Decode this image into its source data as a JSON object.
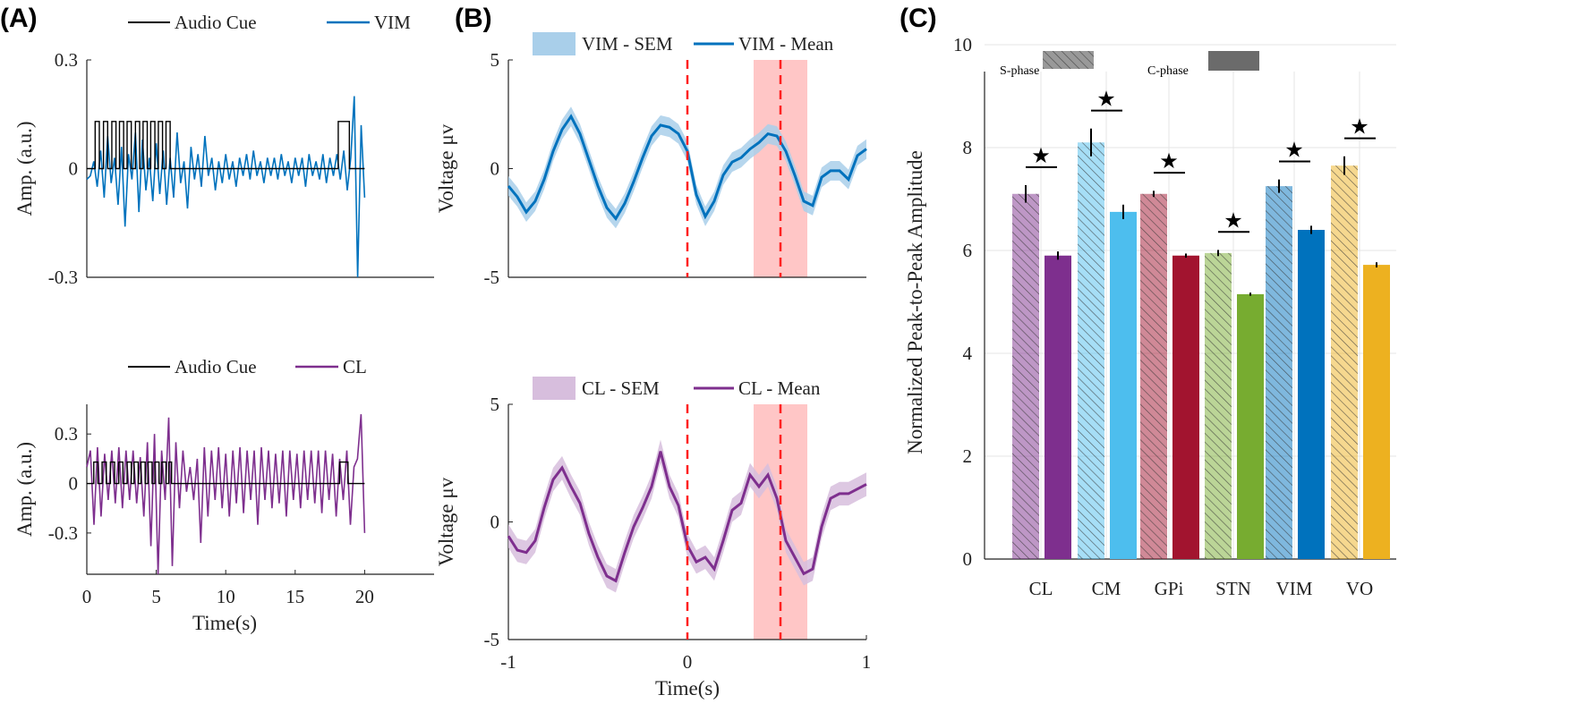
{
  "panels": {
    "a": "(A)",
    "b": "(B)",
    "c": "(C)"
  },
  "chart_data": [
    {
      "id": "A-top",
      "type": "line",
      "ylabel": "Amp.  (a.u.)",
      "xlabel": "",
      "xlim": [
        0,
        25
      ],
      "ylim": [
        -0.3,
        0.3
      ],
      "xticks": [],
      "yticks": [
        -0.3,
        0,
        0.3
      ],
      "ytick_labels": [
        "-0.3",
        "0",
        "0.3"
      ],
      "legend": [
        "Audio Cue",
        "VIM"
      ],
      "series": [
        {
          "name": "Audio Cue",
          "color": "#000000",
          "amplitude": 0.13,
          "pulses": [
            [
              0.6,
              0.9
            ],
            [
              1.2,
              1.5
            ],
            [
              1.8,
              2.1
            ],
            [
              2.35,
              2.65
            ],
            [
              2.9,
              3.2
            ],
            [
              3.5,
              3.8
            ],
            [
              4.05,
              4.35
            ],
            [
              4.6,
              4.9
            ],
            [
              5.15,
              5.45
            ],
            [
              5.7,
              6.0
            ],
            [
              18.1,
              18.9
            ]
          ],
          "x_range": [
            0,
            20
          ]
        },
        {
          "name": "VIM",
          "color": "#0072BD",
          "x_range": [
            0,
            20
          ],
          "values": [
            -0.03,
            -0.02,
            0.02,
            -0.05,
            0.05,
            -0.08,
            0.09,
            -0.04,
            0.03,
            -0.1,
            0.06,
            -0.16,
            0.04,
            -0.03,
            0.1,
            -0.12,
            0.08,
            -0.06,
            0.03,
            -0.09,
            0.07,
            -0.07,
            0.05,
            -0.1,
            0.03,
            -0.08,
            0.1,
            -0.04,
            0.02,
            -0.11,
            0.06,
            -0.03,
            0.04,
            -0.05,
            0.09,
            -0.02,
            0.03,
            -0.06,
            0.02,
            -0.04,
            0.04,
            -0.03,
            0.02,
            -0.05,
            0.03,
            -0.02,
            0.04,
            -0.03,
            0.05,
            -0.02,
            0.02,
            -0.04,
            0.03,
            -0.02,
            0.03,
            -0.03,
            0.04,
            -0.02,
            0.02,
            -0.04,
            0.03,
            -0.02,
            0.03,
            -0.05,
            0.04,
            -0.02,
            0.02,
            -0.03,
            0.04,
            -0.04,
            0.03,
            -0.02,
            0.04,
            -0.03,
            0.05,
            -0.06,
            0.03,
            0.2,
            -0.3,
            0.12,
            -0.08
          ]
        }
      ]
    },
    {
      "id": "A-bottom",
      "type": "line",
      "ylabel": "Amp.  (a.u.)",
      "xlabel": "Time(s)",
      "xlim": [
        0,
        25
      ],
      "ylim": [
        -0.55,
        0.48
      ],
      "xticks": [
        0,
        5,
        10,
        15,
        20
      ],
      "yticks": [
        -0.3,
        0,
        0.3
      ],
      "ytick_labels": [
        "-0.3",
        "0",
        "0.3"
      ],
      "legend": [
        "Audio Cue",
        "CL"
      ],
      "series": [
        {
          "name": "Audio Cue",
          "color": "#000000",
          "amplitude": 0.13,
          "pulses": [
            [
              0.5,
              0.8
            ],
            [
              1.1,
              1.4
            ],
            [
              1.7,
              2.0
            ],
            [
              2.3,
              2.6
            ],
            [
              2.9,
              3.2
            ],
            [
              3.4,
              3.7
            ],
            [
              3.9,
              4.2
            ],
            [
              4.4,
              4.7
            ],
            [
              4.9,
              5.2
            ],
            [
              5.4,
              5.7
            ],
            [
              5.9,
              6.1
            ],
            [
              18.2,
              18.8
            ]
          ],
          "x_range": [
            0,
            20
          ]
        },
        {
          "name": "CL",
          "color": "#7E2F8E",
          "x_range": [
            0,
            20
          ],
          "values": [
            0.1,
            0.2,
            -0.25,
            0.22,
            -0.2,
            0.18,
            -0.1,
            0.2,
            -0.12,
            0.22,
            -0.15,
            0.2,
            -0.1,
            0.2,
            -0.12,
            0.16,
            -0.2,
            0.25,
            -0.38,
            0.3,
            -0.6,
            0.2,
            -0.1,
            0.4,
            -0.5,
            0.25,
            -0.15,
            0.2,
            -0.05,
            0.1,
            -0.1,
            0.15,
            -0.36,
            0.22,
            -0.2,
            0.2,
            -0.1,
            0.22,
            -0.15,
            0.18,
            -0.2,
            0.2,
            -0.12,
            0.22,
            -0.18,
            0.2,
            -0.1,
            0.2,
            -0.25,
            0.22,
            -0.1,
            0.2,
            -0.15,
            0.18,
            -0.12,
            0.2,
            -0.2,
            0.2,
            -0.1,
            0.18,
            -0.15,
            0.2,
            -0.1,
            0.2,
            -0.12,
            0.2,
            -0.18,
            0.2,
            -0.1,
            0.18,
            -0.2,
            0.15,
            -0.1,
            0.2,
            -0.25,
            0.1,
            0.15,
            0.42,
            -0.3
          ]
        }
      ]
    },
    {
      "id": "B-top",
      "type": "line",
      "ylabel": "Voltage μv",
      "xlabel": "",
      "xlim": [
        -1,
        1
      ],
      "ylim": [
        -5,
        5
      ],
      "xticks": [],
      "yticks": [
        -5,
        0,
        5
      ],
      "ytick_labels": [
        "-5",
        "0",
        "5"
      ],
      "legend": [
        "VIM - SEM",
        "VIM - Mean"
      ],
      "vlines": [
        0,
        0.52
      ],
      "shaded_x": [
        0.37,
        0.67
      ],
      "mean_color": "#0072BD",
      "sem_color": "#A9CFEA",
      "sem": 0.45,
      "x_range": [
        -1,
        1
      ],
      "mean": [
        -0.8,
        -1.3,
        -2.0,
        -1.5,
        -0.5,
        0.8,
        1.8,
        2.4,
        1.6,
        0.4,
        -0.8,
        -1.8,
        -2.3,
        -1.6,
        -0.6,
        0.5,
        1.5,
        2.0,
        1.9,
        1.6,
        0.8,
        -1.2,
        -2.2,
        -1.5,
        -0.3,
        0.3,
        0.5,
        0.9,
        1.2,
        1.6,
        1.5,
        0.8,
        -0.3,
        -1.5,
        -1.7,
        -0.4,
        -0.1,
        -0.1,
        -0.5,
        0.6,
        0.9
      ]
    },
    {
      "id": "B-bottom",
      "type": "line",
      "ylabel": "Voltage μv",
      "xlabel": "Time(s)",
      "xlim": [
        -1,
        1
      ],
      "ylim": [
        -5,
        5
      ],
      "xticks": [
        -1,
        0,
        1
      ],
      "yticks": [
        -5,
        0,
        5
      ],
      "ytick_labels": [
        "-5",
        "0",
        "5"
      ],
      "legend": [
        "CL - SEM",
        "CL - Mean"
      ],
      "vlines": [
        0,
        0.52
      ],
      "shaded_x": [
        0.37,
        0.67
      ],
      "mean_color": "#7E2F8E",
      "sem_color": "#D7BEDD",
      "sem": 0.5,
      "x_range": [
        -1,
        1
      ],
      "mean": [
        -0.6,
        -1.2,
        -1.3,
        -0.8,
        0.6,
        1.8,
        2.3,
        1.5,
        0.8,
        -0.5,
        -1.5,
        -2.3,
        -2.5,
        -1.3,
        -0.2,
        0.6,
        1.5,
        3.0,
        1.5,
        0.7,
        -1.0,
        -1.7,
        -1.5,
        -2.0,
        -0.8,
        0.5,
        0.8,
        2.0,
        1.5,
        2.0,
        1.0,
        -0.8,
        -1.5,
        -2.2,
        -2.0,
        -0.2,
        1.0,
        1.2,
        1.2,
        1.4,
        1.6
      ]
    },
    {
      "id": "C",
      "type": "bar",
      "ylabel": "Normalized Peak-to-Peak Amplitude",
      "xlabel": "",
      "ylim": [
        0,
        10
      ],
      "yticks": [
        0,
        2,
        4,
        6,
        8,
        10
      ],
      "grid": true,
      "legend": [
        "S-phase",
        "C-phase"
      ],
      "categories": [
        "CL",
        "CM",
        "GPi",
        "STN",
        "VIM",
        "VO"
      ],
      "colors": [
        "#7E2F8E",
        "#4DBEEE",
        "#A2142F",
        "#77AC30",
        "#0072BD",
        "#EDB120"
      ],
      "series": [
        {
          "name": "S-phase",
          "values": [
            7.1,
            8.1,
            7.1,
            5.95,
            7.25,
            7.65
          ],
          "errors": [
            0.17,
            0.27,
            0.06,
            0.06,
            0.13,
            0.18
          ]
        },
        {
          "name": "C-phase",
          "values": [
            5.9,
            6.75,
            5.9,
            5.15,
            6.4,
            5.72
          ],
          "errors": [
            0.08,
            0.14,
            0.04,
            0.03,
            0.08,
            0.05
          ]
        }
      ],
      "significance_marker": "★",
      "significant": [
        true,
        true,
        true,
        true,
        true,
        true
      ]
    }
  ]
}
